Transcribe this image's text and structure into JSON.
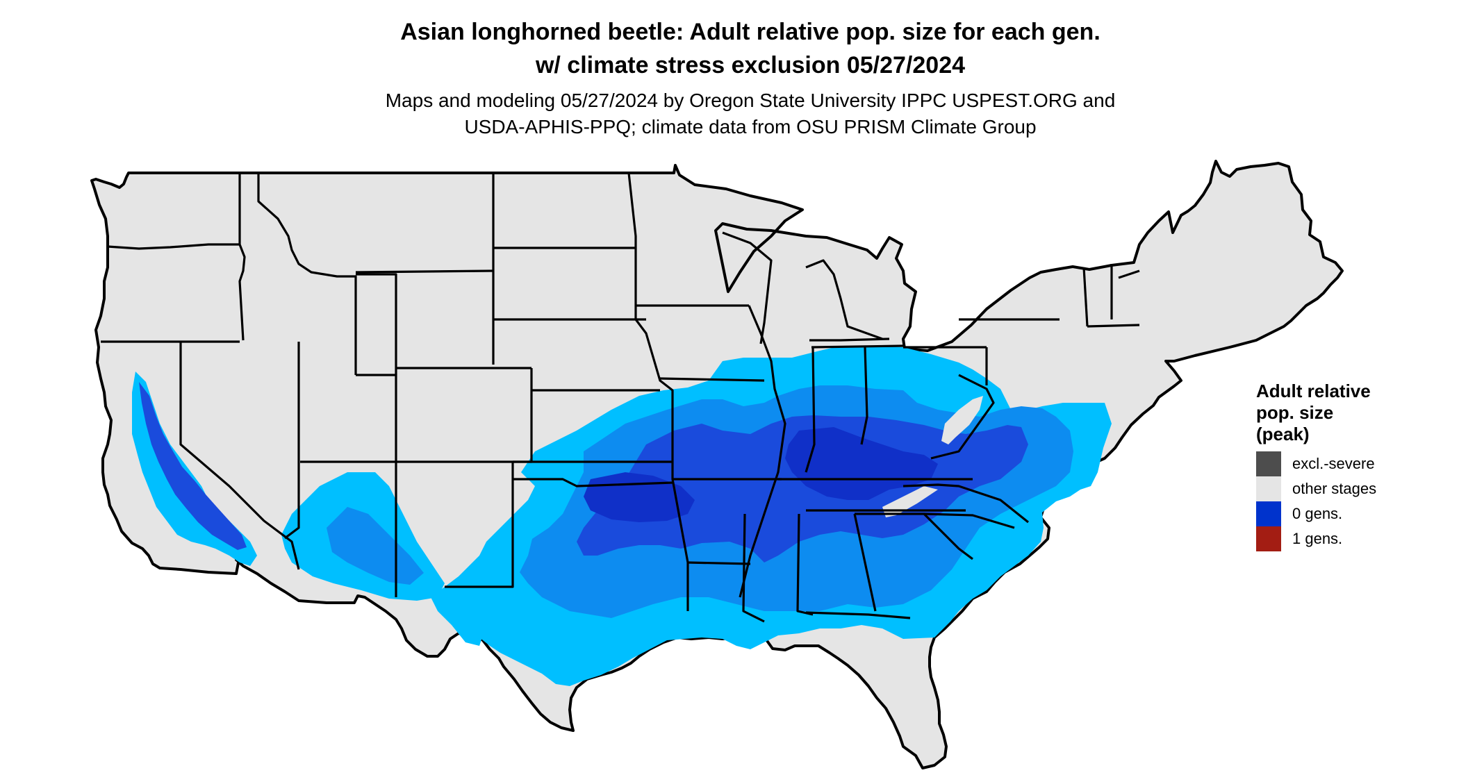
{
  "title": {
    "line1": "Asian longhorned beetle: Adult relative pop. size for each gen.",
    "line2": "w/ climate stress exclusion 05/27/2024"
  },
  "subtitle": {
    "line1": "Maps and modeling 05/27/2024 by Oregon State University IPPC USPEST.ORG and",
    "line2": "USDA-APHIS-PPQ; climate data from OSU PRISM Climate Group"
  },
  "legend": {
    "title_line1": "Adult relative",
    "title_line2": "pop. size",
    "title_line3": "(peak)",
    "items": [
      {
        "label": "excl.-severe",
        "color": "#4d4d4d"
      },
      {
        "label": "other stages",
        "color": "#e5e5e5"
      },
      {
        "label": "0 gens.",
        "color": "#0033cc"
      },
      {
        "label": "1 gens.",
        "color": "#a31d13"
      }
    ]
  },
  "map_colors": {
    "land": "#e5e5e5",
    "border": "#000000",
    "zero_gens_light": "#00bfff",
    "zero_gens_mid": "#0d8cf0",
    "zero_gens_dark": "#1a4bdc",
    "zero_gens_darkest": "#1030c8"
  }
}
